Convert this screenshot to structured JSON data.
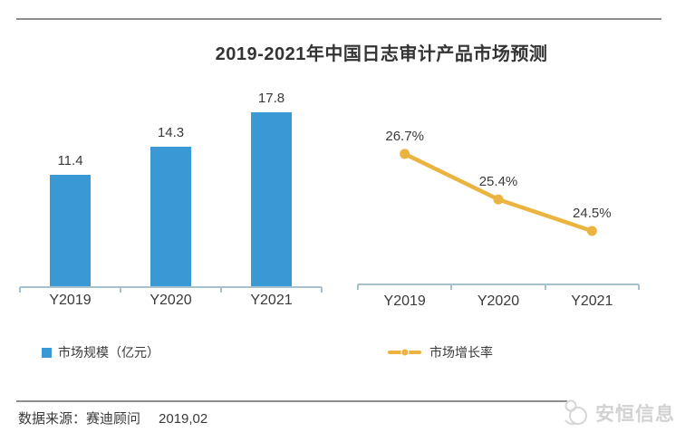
{
  "title": "2019-2021年中国日志审计产品市场预测",
  "axis_color": "#a7c0cd",
  "text_color": "#3a3a3a",
  "chart_data": [
    {
      "type": "bar",
      "series_name": "市场规模（亿元）",
      "categories": [
        "Y2019",
        "Y2020",
        "Y2021"
      ],
      "values": [
        11.4,
        14.3,
        17.8
      ],
      "data_labels": [
        "11.4",
        "14.3",
        "17.8"
      ],
      "color": "#3a99d5",
      "ylim": [
        0,
        20
      ],
      "grid": false,
      "legend_position": "bottom"
    },
    {
      "type": "line",
      "series_name": "市场增长率",
      "categories": [
        "Y2019",
        "Y2020",
        "Y2021"
      ],
      "values": [
        26.7,
        25.4,
        24.5
      ],
      "data_labels": [
        "26.7%",
        "25.4%",
        "24.5%"
      ],
      "color": "#ebb440",
      "ylim": [
        23,
        27.5
      ],
      "grid": false,
      "legend_position": "bottom"
    }
  ],
  "footer": {
    "source": "数据来源：赛迪顾问",
    "date": "2019,02"
  },
  "watermark": {
    "text": "安恒信息"
  }
}
